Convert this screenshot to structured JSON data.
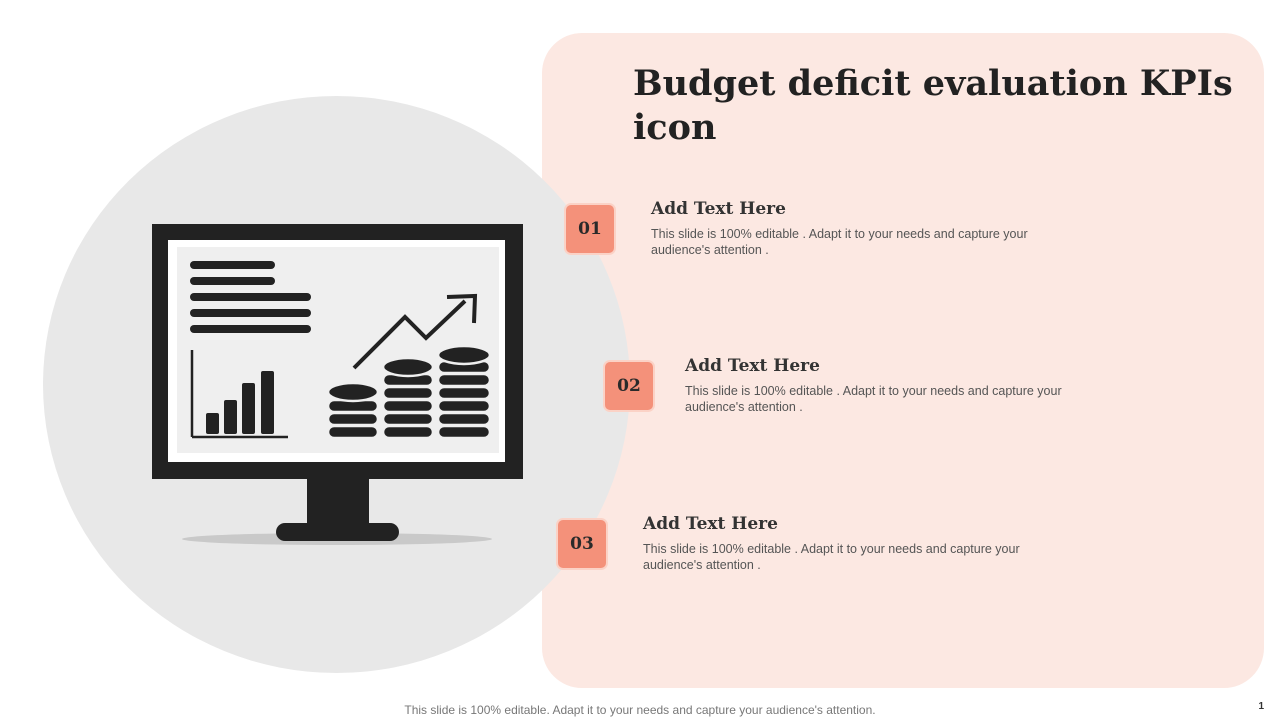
{
  "slide": {
    "title": "Budget deficit evaluation KPIs icon",
    "items": [
      {
        "number": "01",
        "heading": "Add Text Here",
        "body": "This slide is 100% editable . Adapt it to your needs and capture your audience's attention ."
      },
      {
        "number": "02",
        "heading": "Add Text Here",
        "body": "This slide is 100% editable . Adapt it to your needs and capture your audience's attention ."
      },
      {
        "number": "03",
        "heading": "Add Text Here",
        "body": "This slide is 100% editable . Adapt it to your needs and capture your audience's attention ."
      }
    ],
    "footer": "This slide is 100% editable. Adapt it to your needs and capture your audience's attention.",
    "page_number": "1"
  },
  "icons": [
    "monitor-icon",
    "document-lines-icon",
    "bar-chart-icon",
    "trend-arrow-icon",
    "coin-stack-icon"
  ],
  "colors": {
    "panel": "#fce8e2",
    "circle": "#e8e8e8",
    "accent": "#f4917a",
    "icon": "#222222"
  }
}
